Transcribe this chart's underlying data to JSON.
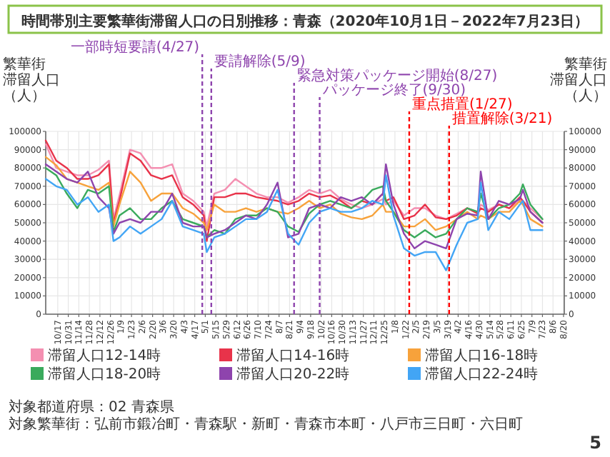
{
  "chart_data": {
    "type": "line",
    "title": "時間帯別主要繁華街滞留人口の日別推移：青森（2020年10月1日－2022年7月23日）",
    "ylabel": "繁華街滞留人口（人）",
    "y2label": "繁華街滞留人口（人）",
    "x": [
      "2020-10-01",
      "2020-10-15",
      "2020-10-29",
      "2020-11-12",
      "2020-11-26",
      "2020-12-10",
      "2020-12-24",
      "2020-12-30",
      "2021-01-07",
      "2021-01-21",
      "2021-02-04",
      "2021-02-18",
      "2021-03-04",
      "2021-03-18",
      "2021-04-01",
      "2021-04-15",
      "2021-04-29",
      "2021-05-03",
      "2021-05-13",
      "2021-05-27",
      "2021-06-10",
      "2021-06-24",
      "2021-07-08",
      "2021-07-22",
      "2021-08-05",
      "2021-08-19",
      "2021-09-02",
      "2021-09-16",
      "2021-09-30",
      "2021-10-14",
      "2021-10-28",
      "2021-11-11",
      "2021-11-25",
      "2021-12-09",
      "2021-12-23",
      "2021-12-27",
      "2022-01-06",
      "2022-01-20",
      "2022-02-03",
      "2022-02-17",
      "2022-03-03",
      "2022-03-17",
      "2022-03-31",
      "2022-04-14",
      "2022-04-28",
      "2022-05-02",
      "2022-05-12",
      "2022-05-26",
      "2022-06-09",
      "2022-06-23",
      "2022-06-27",
      "2022-07-07",
      "2022-07-23"
    ],
    "series": [
      {
        "name": "滞留人口12-14時",
        "color": "#f48fb1",
        "values": [
          93000,
          80000,
          78000,
          76000,
          76000,
          79000,
          84000,
          52000,
          65000,
          90000,
          88000,
          80000,
          80000,
          82000,
          66000,
          62000,
          56000,
          48000,
          66000,
          68000,
          74000,
          70000,
          66000,
          64000,
          64000,
          61000,
          64000,
          68000,
          66000,
          68000,
          63000,
          60000,
          58000,
          60000,
          63000,
          60000,
          62000,
          54000,
          58000,
          58000,
          54000,
          52000,
          55000,
          58000,
          56000,
          60000,
          57000,
          60000,
          58000,
          62000,
          62000,
          58000,
          52000
        ]
      },
      {
        "name": "滞留人口14-16時",
        "color": "#e8334a",
        "values": [
          95000,
          84000,
          80000,
          74000,
          74000,
          76000,
          82000,
          50000,
          62000,
          88000,
          84000,
          76000,
          74000,
          76000,
          64000,
          60000,
          54000,
          40000,
          64000,
          64000,
          66000,
          66000,
          64000,
          63000,
          62000,
          60000,
          62000,
          66000,
          64000,
          65000,
          62000,
          58000,
          62000,
          60000,
          66000,
          62000,
          64000,
          52000,
          54000,
          60000,
          53000,
          52000,
          54000,
          58000,
          55000,
          58000,
          56000,
          60000,
          58000,
          64000,
          62000,
          56000,
          50000
        ]
      },
      {
        "name": "滞留人口16-18時",
        "color": "#f7a23b",
        "values": [
          86000,
          81500,
          74000,
          72000,
          70000,
          68000,
          72000,
          48000,
          60000,
          78000,
          72000,
          62000,
          66000,
          66000,
          58000,
          55000,
          50000,
          46000,
          60000,
          56000,
          56000,
          58000,
          56000,
          58000,
          56000,
          55000,
          58000,
          62000,
          58000,
          60000,
          55000,
          53000,
          52000,
          54000,
          60000,
          56000,
          56000,
          48000,
          48000,
          52000,
          46000,
          48000,
          52000,
          56000,
          52000,
          54000,
          52000,
          56000,
          56000,
          62000,
          60000,
          52000,
          48000
        ]
      },
      {
        "name": "滞留人口18-20時",
        "color": "#3aaa5c",
        "values": [
          80000,
          76000,
          66000,
          58000,
          68000,
          66000,
          70000,
          45000,
          54000,
          58000,
          52000,
          52000,
          58000,
          62000,
          52000,
          50000,
          48000,
          42000,
          46000,
          44000,
          52000,
          54000,
          54000,
          58000,
          56000,
          48000,
          45000,
          55000,
          60000,
          62000,
          60000,
          58000,
          62000,
          68000,
          70000,
          62000,
          56000,
          46000,
          42000,
          46000,
          42000,
          44000,
          52000,
          58000,
          56000,
          66000,
          52000,
          58000,
          60000,
          66000,
          71000,
          60000,
          52000
        ]
      },
      {
        "name": "滞留人口20-22時",
        "color": "#8e44ad",
        "values": [
          82000,
          78000,
          74000,
          72000,
          78000,
          64000,
          58000,
          44000,
          50000,
          52000,
          50000,
          56000,
          56000,
          66000,
          50000,
          48000,
          48000,
          42000,
          44000,
          46000,
          50000,
          54000,
          52000,
          60000,
          72000,
          42000,
          44000,
          58000,
          60000,
          58000,
          64000,
          62000,
          64000,
          60000,
          66000,
          82000,
          60000,
          44000,
          36000,
          40000,
          38000,
          36000,
          52000,
          55000,
          54000,
          78000,
          52000,
          62000,
          60000,
          63000,
          68000,
          56000,
          50000
        ]
      },
      {
        "name": "滞留人口22-24時",
        "color": "#42a5f5",
        "values": [
          74000,
          70000,
          68000,
          60000,
          64000,
          56000,
          60000,
          40000,
          42000,
          48000,
          44000,
          48000,
          52000,
          62000,
          48000,
          46000,
          44000,
          34000,
          42000,
          44000,
          48000,
          52000,
          52000,
          56000,
          68000,
          44000,
          38000,
          50000,
          56000,
          58000,
          56000,
          56000,
          58000,
          62000,
          60000,
          76000,
          54000,
          36000,
          32000,
          34000,
          34000,
          24000,
          38000,
          50000,
          52000,
          72000,
          46000,
          56000,
          52000,
          60000,
          62000,
          46000,
          46000
        ]
      }
    ],
    "xlim": [
      "2020-10-01",
      "2022-08-21"
    ],
    "xticks": [
      {
        "value": "2020-10-17",
        "label": "10/17"
      },
      {
        "value": "2020-10-31",
        "label": "10/31"
      },
      {
        "value": "2020-11-14",
        "label": "11/14"
      },
      {
        "value": "2020-11-28",
        "label": "11/28"
      },
      {
        "value": "2020-12-12",
        "label": "12/12"
      },
      {
        "value": "2020-12-26",
        "label": "12/26"
      },
      {
        "value": "2021-01-09",
        "label": "1/9"
      },
      {
        "value": "2021-01-23",
        "label": "1/23"
      },
      {
        "value": "2021-02-06",
        "label": "2/6"
      },
      {
        "value": "2021-02-20",
        "label": "2/20"
      },
      {
        "value": "2021-03-06",
        "label": "3/6"
      },
      {
        "value": "2021-03-20",
        "label": "3/20"
      },
      {
        "value": "2021-04-03",
        "label": "4/3"
      },
      {
        "value": "2021-04-17",
        "label": "4/17"
      },
      {
        "value": "2021-05-01",
        "label": "5/1"
      },
      {
        "value": "2021-05-15",
        "label": "5/15"
      },
      {
        "value": "2021-05-29",
        "label": "5/29"
      },
      {
        "value": "2021-06-12",
        "label": "6/12"
      },
      {
        "value": "2021-06-26",
        "label": "6/26"
      },
      {
        "value": "2021-07-10",
        "label": "7/10"
      },
      {
        "value": "2021-07-24",
        "label": "7/24"
      },
      {
        "value": "2021-08-07",
        "label": "8/7"
      },
      {
        "value": "2021-08-21",
        "label": "8/21"
      },
      {
        "value": "2021-09-04",
        "label": "9/4"
      },
      {
        "value": "2021-09-18",
        "label": "9/18"
      },
      {
        "value": "2021-10-02",
        "label": "10/2"
      },
      {
        "value": "2021-10-16",
        "label": "10/16"
      },
      {
        "value": "2021-10-30",
        "label": "10/30"
      },
      {
        "value": "2021-11-13",
        "label": "11/13"
      },
      {
        "value": "2021-11-27",
        "label": "11/27"
      },
      {
        "value": "2021-12-11",
        "label": "12/11"
      },
      {
        "value": "2021-12-25",
        "label": "12/25"
      },
      {
        "value": "2022-01-08",
        "label": "1/8"
      },
      {
        "value": "2022-01-22",
        "label": "1/22"
      },
      {
        "value": "2022-02-05",
        "label": "2/5"
      },
      {
        "value": "2022-02-19",
        "label": "2/19"
      },
      {
        "value": "2022-03-05",
        "label": "3/5"
      },
      {
        "value": "2022-03-19",
        "label": "3/19"
      },
      {
        "value": "2022-04-02",
        "label": "4/2"
      },
      {
        "value": "2022-04-16",
        "label": "4/16"
      },
      {
        "value": "2022-04-30",
        "label": "4/30"
      },
      {
        "value": "2022-05-14",
        "label": "5/14"
      },
      {
        "value": "2022-05-28",
        "label": "5/28"
      },
      {
        "value": "2022-06-11",
        "label": "6/11"
      },
      {
        "value": "2022-06-25",
        "label": "6/25"
      },
      {
        "value": "2022-07-09",
        "label": "7/9"
      },
      {
        "value": "2022-07-23",
        "label": "7/23"
      },
      {
        "value": "2022-08-06",
        "label": "8/6"
      },
      {
        "value": "2022-08-20",
        "label": "8/20"
      }
    ],
    "ylim": [
      0,
      100000
    ],
    "yticks": [
      0,
      10000,
      20000,
      30000,
      40000,
      50000,
      60000,
      70000,
      80000,
      90000,
      100000
    ],
    "y2lim": [
      0,
      100000
    ],
    "y2ticks": [
      0,
      10000,
      20000,
      30000,
      40000,
      50000,
      60000,
      70000,
      80000,
      90000,
      100000
    ],
    "grid": true,
    "legend": "bottom",
    "ref_lines": [
      {
        "axis": "x",
        "value": "2021-04-27",
        "label": "一部時短要請(4/27)",
        "color": "#8e44ad",
        "line_style": "dashed"
      },
      {
        "axis": "x",
        "value": "2021-05-09",
        "label": "要請解除(5/9)",
        "color": "#8e44ad",
        "line_style": "dashed"
      },
      {
        "axis": "x",
        "value": "2021-08-27",
        "label": "緊急対策パッケージ開始(8/27)",
        "color": "#8e44ad",
        "line_style": "dashed"
      },
      {
        "axis": "x",
        "value": "2021-09-30",
        "label": "パッケージ終了(9/30)",
        "color": "#8e44ad",
        "line_style": "dashed"
      },
      {
        "axis": "x",
        "value": "2022-01-27",
        "label": "重点措置(1/27)",
        "color": "#ff0000",
        "line_style": "dashed"
      },
      {
        "axis": "x",
        "value": "2022-03-21",
        "label": "措置解除(3/21)",
        "color": "#ff0000",
        "line_style": "dashed"
      }
    ],
    "annotations": [
      "対象都道府県：02 青森県",
      "対象繁華街：弘前市鍛冶町・青森駅・新町・青森市本町・八戸市三日町・六日町",
      "5"
    ]
  }
}
